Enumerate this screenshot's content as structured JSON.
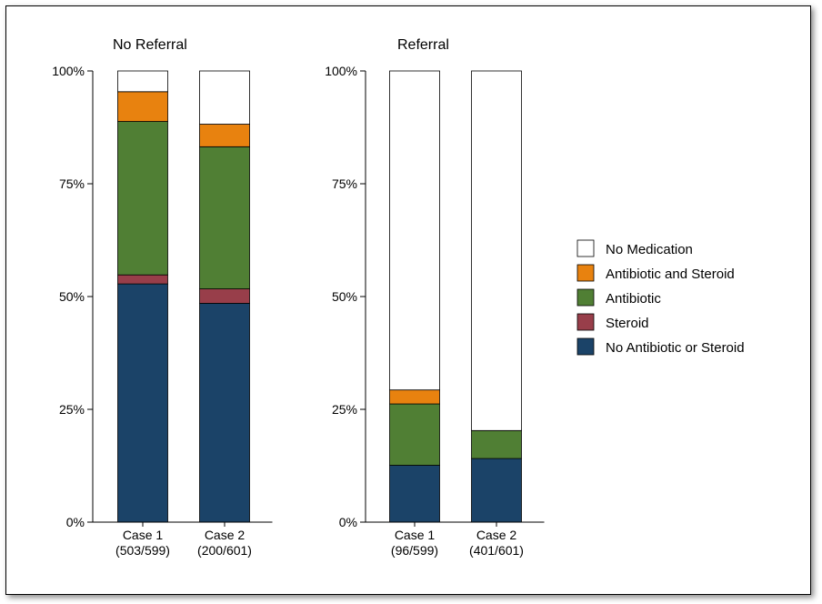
{
  "chart_data": {
    "type": "bar",
    "stacked": true,
    "grid": false,
    "legend_position": "right",
    "ylim": [
      0,
      100
    ],
    "y_ticks": [
      "0%",
      "25%",
      "50%",
      "75%",
      "100%"
    ],
    "y_tick_values": [
      0,
      25,
      50,
      75,
      100
    ],
    "stack_order": [
      "No Antibiotic or Steroid",
      "Steroid",
      "Antibiotic",
      "Antibiotic and Steroid",
      "No Medication"
    ],
    "colors": {
      "No Medication": "#ffffff",
      "Antibiotic and Steroid": "#e8820f",
      "Antibiotic": "#507f34",
      "Steroid": "#983e4a",
      "No Antibiotic or Steroid": "#1b4368"
    },
    "legend": [
      "No Medication",
      "Antibiotic and Steroid",
      "Antibiotic",
      "Steroid",
      "No Antibiotic or Steroid"
    ],
    "panels": [
      {
        "title": "No Referral",
        "bars": [
          {
            "label": "Case 1",
            "sublabel": "(503/599)",
            "segments": {
              "No Antibiotic or Steroid": 52.8,
              "Steroid": 2.0,
              "Antibiotic": 34.0,
              "Antibiotic and Steroid": 6.6,
              "No Medication": 4.6
            }
          },
          {
            "label": "Case 2",
            "sublabel": "(200/601)",
            "segments": {
              "No Antibiotic or Steroid": 48.5,
              "Steroid": 3.2,
              "Antibiotic": 31.5,
              "Antibiotic and Steroid": 5.0,
              "No Medication": 11.8
            }
          }
        ]
      },
      {
        "title": "Referral",
        "bars": [
          {
            "label": "Case 1",
            "sublabel": "(96/599)",
            "segments": {
              "No Antibiotic or Steroid": 12.6,
              "Steroid": 0,
              "Antibiotic": 13.6,
              "Antibiotic and Steroid": 3.1,
              "No Medication": 70.7
            }
          },
          {
            "label": "Case 2",
            "sublabel": "(401/601)",
            "segments": {
              "No Antibiotic or Steroid": 14.1,
              "Steroid": 0,
              "Antibiotic": 6.2,
              "Antibiotic and Steroid": 0,
              "No Medication": 79.7
            }
          }
        ]
      }
    ]
  }
}
